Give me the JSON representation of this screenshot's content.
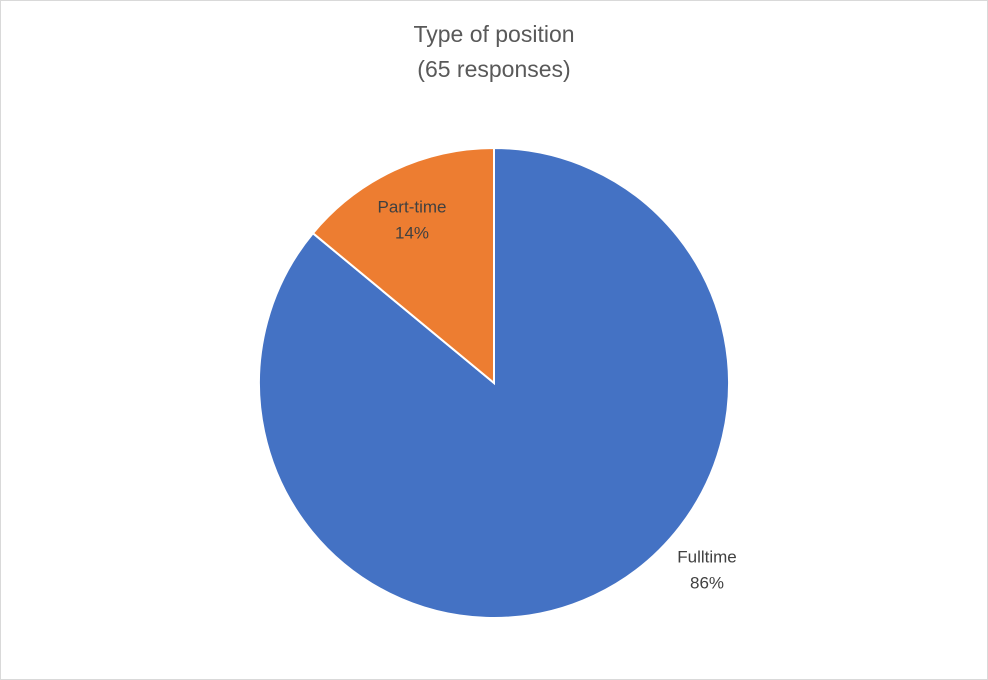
{
  "chart_data": {
    "type": "pie",
    "title": "Type of position",
    "subtitle": "(65 responses)",
    "categories": [
      "Fulltime",
      "Part-time"
    ],
    "values": [
      86,
      14
    ],
    "value_labels": [
      "86%",
      "14%"
    ],
    "colors": [
      "#4472c4",
      "#ed7d31"
    ]
  }
}
